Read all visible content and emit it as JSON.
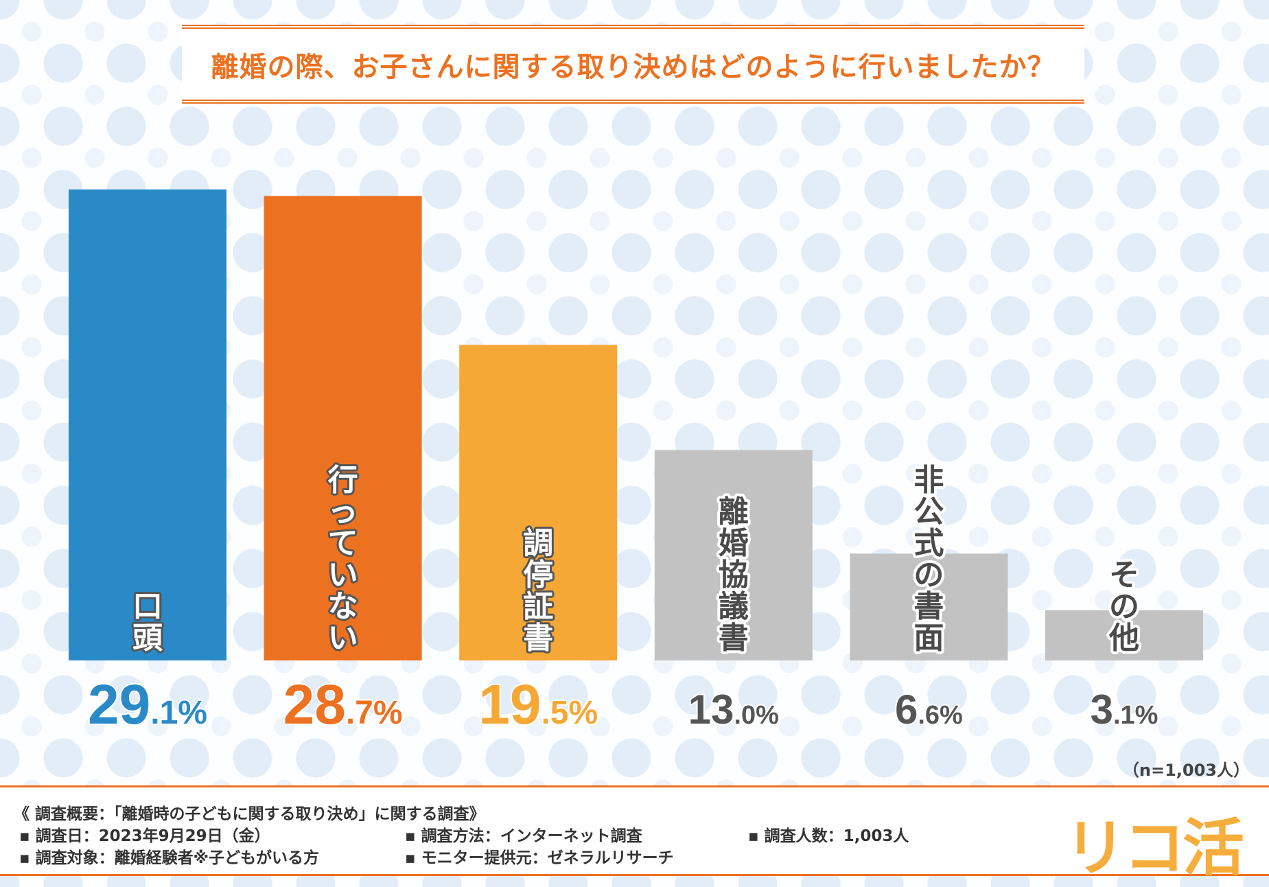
{
  "title": "離婚の際、お子さんに関する取り決めはどのように行いましたか？",
  "chart_data": {
    "type": "bar",
    "title": "離婚の際、お子さんに関する取り決めはどのように行いましたか？",
    "categories": [
      "口頭",
      "行っていない",
      "調停証書",
      "離婚協議書",
      "非公式の書面",
      "その他"
    ],
    "values": [
      29.1,
      28.7,
      19.5,
      13.0,
      6.6,
      3.1
    ],
    "value_labels": [
      "29.1%",
      "28.7%",
      "19.5%",
      "13.0%",
      "6.6%",
      "3.1%"
    ],
    "unit": "%",
    "colors": [
      "#2a8ac8",
      "#ec7120",
      "#f6a836",
      "#c2c2c2",
      "#c2c2c2",
      "#c2c2c2"
    ],
    "value_colors": [
      "#2a8ac8",
      "#ec7120",
      "#f6a836",
      "#555555",
      "#555555",
      "#555555"
    ],
    "ylim": [
      0,
      29.1
    ],
    "grid": false,
    "legend": "none"
  },
  "n_note": "（n=1,003人）",
  "footer": {
    "overview": "《 調査概要：「離婚時の子どもに関する取り決め」に関する調査》",
    "date": "▪ 調査日：2023年9月29日（金）",
    "method": "▪ 調査方法：インターネット調査",
    "count": "▪ 調査人数：1,003人",
    "target": "▪ 調査対象：離婚経験者※子どもがいる方",
    "provider": "▪ モニター提供元：ゼネラルリサーチ"
  },
  "logo": "リコ活"
}
